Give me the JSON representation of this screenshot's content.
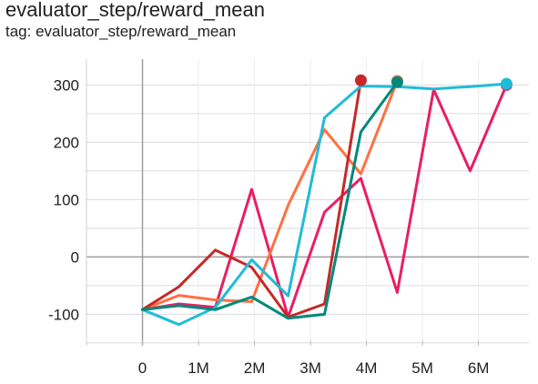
{
  "chart": {
    "title": "evaluator_step/reward_mean",
    "subtitle": "tag: evaluator_step/reward_mean"
  },
  "chart_data": {
    "type": "line",
    "title": "evaluator_step/reward_mean",
    "subtitle": "tag: evaluator_step/reward_mean",
    "xlabel": "",
    "ylabel": "",
    "xlim": [
      -1000000,
      6900000
    ],
    "ylim": [
      -155,
      345
    ],
    "x_ticks": [
      0,
      1000000,
      2000000,
      3000000,
      4000000,
      5000000,
      6000000
    ],
    "x_tick_labels": [
      "0",
      "1M",
      "2M",
      "3M",
      "4M",
      "5M",
      "6M"
    ],
    "y_ticks": [
      -100,
      0,
      100,
      200,
      300
    ],
    "y_tick_labels": [
      "-100",
      "0",
      "100",
      "200",
      "300"
    ],
    "grid": true,
    "legend": "none",
    "series": [
      {
        "color": "#e91e63",
        "x": [
          0,
          650000,
          1300000,
          1950000,
          2600000,
          3250000,
          3900000,
          4550000,
          5200000,
          5850000,
          6500000
        ],
        "y": [
          -92,
          -82,
          -88,
          118,
          -105,
          78,
          137,
          -62,
          292,
          150,
          300
        ],
        "end_marker": "circle"
      },
      {
        "color": "#ff7043",
        "x": [
          0,
          650000,
          1300000,
          1950000,
          2600000,
          3250000,
          3900000,
          4550000
        ],
        "y": [
          -92,
          -67,
          -75,
          -78,
          90,
          222,
          145,
          307
        ],
        "end_marker": "circle"
      },
      {
        "color": "#c62828",
        "x": [
          0,
          650000,
          1300000,
          1950000,
          2600000,
          3250000,
          3900000
        ],
        "y": [
          -92,
          -52,
          12,
          -18,
          -105,
          -82,
          308
        ],
        "end_marker": "circle"
      },
      {
        "color": "#1fbcd8",
        "x": [
          0,
          650000,
          1300000,
          1950000,
          2600000,
          3250000,
          3900000,
          4550000,
          5200000,
          5850000,
          6500000
        ],
        "y": [
          -92,
          -118,
          -88,
          -5,
          -68,
          243,
          298,
          297,
          293,
          297,
          302
        ],
        "end_marker": "circle"
      },
      {
        "color": "#00897b",
        "x": [
          0,
          650000,
          1300000,
          1950000,
          2600000,
          3250000,
          3900000,
          4550000
        ],
        "y": [
          -92,
          -85,
          -92,
          -70,
          -107,
          -100,
          218,
          305
        ],
        "end_marker": "circle"
      }
    ]
  }
}
